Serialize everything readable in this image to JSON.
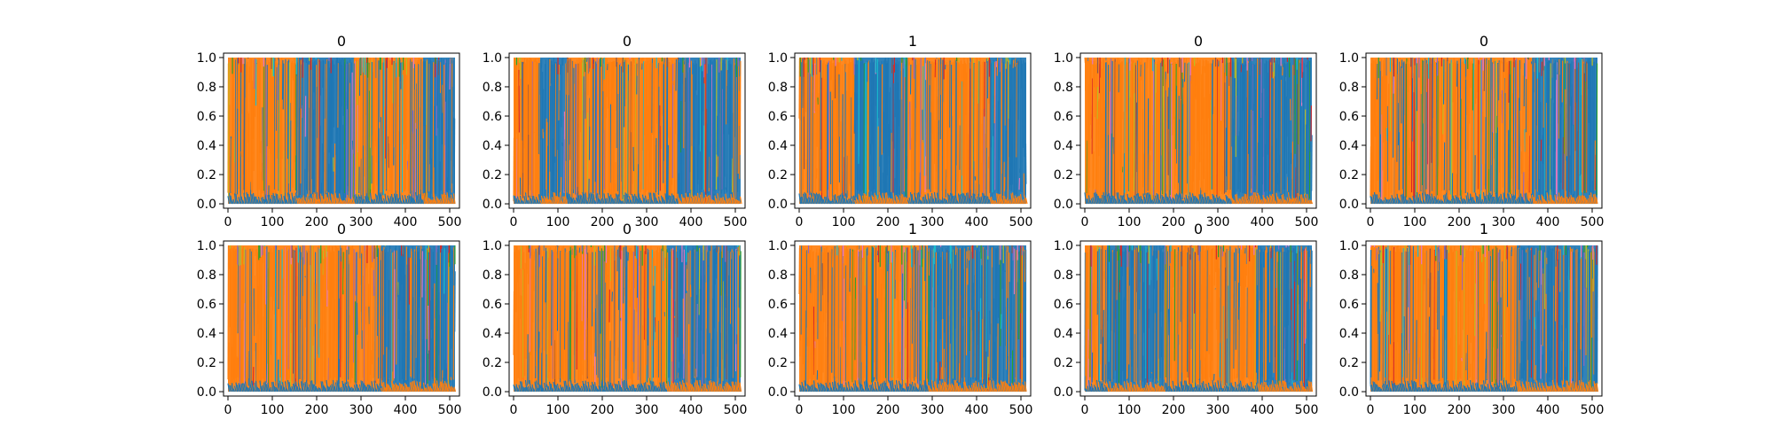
{
  "colors": {
    "blue": "#1f77b4",
    "orange": "#ff7f0e",
    "cyan": "#17becf",
    "olive": "#bcbd22",
    "green": "#2ca02c",
    "red": "#d62728",
    "purple": "#9467bd",
    "pink": "#e377c2",
    "brown": "#8c564b",
    "gray": "#7f7f7f"
  },
  "chart_data": [
    {
      "type": "line",
      "title": "0",
      "xlim": [
        -10,
        522
      ],
      "ylim": [
        -0.03,
        1.03
      ],
      "xticks": [
        0,
        100,
        200,
        300,
        400,
        500
      ],
      "yticks": [
        0.0,
        0.2,
        0.4,
        0.6,
        0.8,
        1.0
      ],
      "segments": [
        {
          "class": "orange",
          "x0": 0,
          "x1": 155
        },
        {
          "class": "blue",
          "x0": 155,
          "x1": 285
        },
        {
          "class": "orange",
          "x0": 285,
          "x1": 440
        },
        {
          "class": "blue",
          "x0": 440,
          "x1": 512
        }
      ]
    },
    {
      "type": "line",
      "title": "0",
      "xlim": [
        -10,
        522
      ],
      "ylim": [
        -0.03,
        1.03
      ],
      "xticks": [
        0,
        100,
        200,
        300,
        400,
        500
      ],
      "yticks": [
        0.0,
        0.2,
        0.4,
        0.6,
        0.8,
        1.0
      ],
      "segments": [
        {
          "class": "orange",
          "x0": 0,
          "x1": 60
        },
        {
          "class": "blue",
          "x0": 60,
          "x1": 120
        },
        {
          "class": "orange",
          "x0": 120,
          "x1": 370
        },
        {
          "class": "blue",
          "x0": 370,
          "x1": 512
        }
      ]
    },
    {
      "type": "line",
      "title": "1",
      "xlim": [
        -10,
        522
      ],
      "ylim": [
        -0.03,
        1.03
      ],
      "xticks": [
        0,
        100,
        200,
        300,
        400,
        500
      ],
      "yticks": [
        0.0,
        0.2,
        0.4,
        0.6,
        0.8,
        1.0
      ],
      "segments": [
        {
          "class": "orange",
          "x0": 0,
          "x1": 125
        },
        {
          "class": "blue",
          "x0": 125,
          "x1": 245
        },
        {
          "class": "orange",
          "x0": 245,
          "x1": 430
        },
        {
          "class": "blue",
          "x0": 430,
          "x1": 512
        }
      ]
    },
    {
      "type": "line",
      "title": "0",
      "xlim": [
        -10,
        522
      ],
      "ylim": [
        -0.03,
        1.03
      ],
      "xticks": [
        0,
        100,
        200,
        300,
        400,
        500
      ],
      "yticks": [
        0.0,
        0.2,
        0.4,
        0.6,
        0.8,
        1.0
      ],
      "segments": [
        {
          "class": "orange",
          "x0": 0,
          "x1": 330
        },
        {
          "class": "blue",
          "x0": 330,
          "x1": 512
        }
      ]
    },
    {
      "type": "line",
      "title": "0",
      "xlim": [
        -10,
        522
      ],
      "ylim": [
        -0.03,
        1.03
      ],
      "xticks": [
        0,
        100,
        200,
        300,
        400,
        500
      ],
      "yticks": [
        0.0,
        0.2,
        0.4,
        0.6,
        0.8,
        1.0
      ],
      "segments": [
        {
          "class": "orange",
          "x0": 0,
          "x1": 365
        },
        {
          "class": "blue",
          "x0": 365,
          "x1": 512
        }
      ]
    },
    {
      "type": "line",
      "title": "0",
      "xlim": [
        -10,
        522
      ],
      "ylim": [
        -0.03,
        1.03
      ],
      "xticks": [
        0,
        100,
        200,
        300,
        400,
        500
      ],
      "yticks": [
        0.0,
        0.2,
        0.4,
        0.6,
        0.8,
        1.0
      ],
      "segments": [
        {
          "class": "orange",
          "x0": 0,
          "x1": 345
        },
        {
          "class": "blue",
          "x0": 345,
          "x1": 512
        }
      ]
    },
    {
      "type": "line",
      "title": "0",
      "xlim": [
        -10,
        522
      ],
      "ylim": [
        -0.03,
        1.03
      ],
      "xticks": [
        0,
        100,
        200,
        300,
        400,
        500
      ],
      "yticks": [
        0.0,
        0.2,
        0.4,
        0.6,
        0.8,
        1.0
      ],
      "segments": [
        {
          "class": "orange",
          "x0": 0,
          "x1": 345
        },
        {
          "class": "blue",
          "x0": 345,
          "x1": 512
        }
      ]
    },
    {
      "type": "line",
      "title": "1",
      "xlim": [
        -10,
        522
      ],
      "ylim": [
        -0.03,
        1.03
      ],
      "xticks": [
        0,
        100,
        200,
        300,
        400,
        500
      ],
      "yticks": [
        0.0,
        0.2,
        0.4,
        0.6,
        0.8,
        1.0
      ],
      "segments": [
        {
          "class": "orange",
          "x0": 0,
          "x1": 290
        },
        {
          "class": "blue",
          "x0": 290,
          "x1": 512
        }
      ]
    },
    {
      "type": "line",
      "title": "0",
      "xlim": [
        -10,
        522
      ],
      "ylim": [
        -0.03,
        1.03
      ],
      "xticks": [
        0,
        100,
        200,
        300,
        400,
        500
      ],
      "yticks": [
        0.0,
        0.2,
        0.4,
        0.6,
        0.8,
        1.0
      ],
      "segments": [
        {
          "class": "orange",
          "x0": 0,
          "x1": 50
        },
        {
          "class": "blue",
          "x0": 50,
          "x1": 180
        },
        {
          "class": "orange",
          "x0": 180,
          "x1": 390
        },
        {
          "class": "blue",
          "x0": 390,
          "x1": 512
        }
      ]
    },
    {
      "type": "line",
      "title": "1",
      "xlim": [
        -10,
        522
      ],
      "ylim": [
        -0.03,
        1.03
      ],
      "xticks": [
        0,
        100,
        200,
        300,
        400,
        500
      ],
      "yticks": [
        0.0,
        0.2,
        0.4,
        0.6,
        0.8,
        1.0
      ],
      "segments": [
        {
          "class": "orange",
          "x0": 0,
          "x1": 330
        },
        {
          "class": "blue",
          "x0": 330,
          "x1": 512
        }
      ]
    }
  ]
}
